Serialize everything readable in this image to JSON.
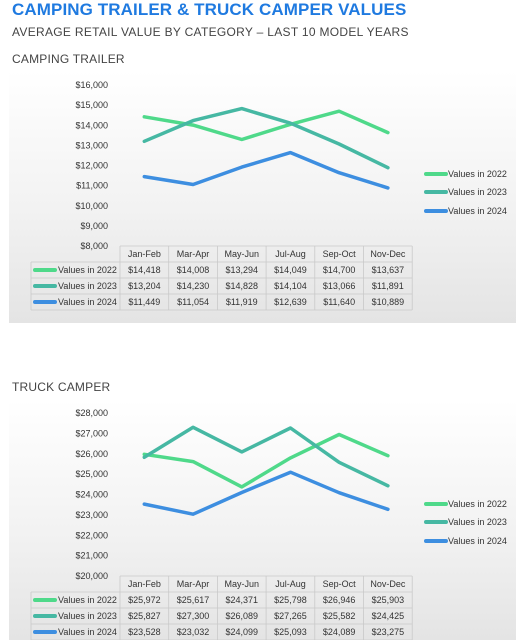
{
  "header": {
    "title": "CAMPING TRAILER & TRUCK CAMPER VALUES",
    "subtitle": "AVERAGE RETAIL VALUE BY CATEGORY – LAST 10 MODEL YEARS"
  },
  "colors": {
    "Values in 2022": "#4fd98a",
    "Values in 2023": "#46b8a3",
    "Values in 2024": "#3d8ee0",
    "title": "#1f7ae0"
  },
  "chart_data": [
    {
      "type": "line",
      "title": "CAMPING TRAILER",
      "categories": [
        "Jan-Feb",
        "Mar-Apr",
        "May-Jun",
        "Jul-Aug",
        "Sep-Oct",
        "Nov-Dec"
      ],
      "ylim": [
        8000,
        16000
      ],
      "yticks": [
        "$8,000",
        "$9,000",
        "$10,000",
        "$11,000",
        "$12,000",
        "$13,000",
        "$14,000",
        "$15,000",
        "$16,000"
      ],
      "legend": "right",
      "series": [
        {
          "name": "Values in 2022",
          "values": [
            14418,
            14008,
            13294,
            14049,
            14700,
            13637
          ],
          "labels": [
            "$14,418",
            "$14,008",
            "$13,294",
            "$14,049",
            "$14,700",
            "$13,637"
          ]
        },
        {
          "name": "Values in 2023",
          "values": [
            13204,
            14230,
            14828,
            14104,
            13066,
            11891
          ],
          "labels": [
            "$13,204",
            "$14,230",
            "$14,828",
            "$14,104",
            "$13,066",
            "$11,891"
          ]
        },
        {
          "name": "Values in 2024",
          "values": [
            11449,
            11054,
            11919,
            12639,
            11640,
            10889
          ],
          "labels": [
            "$11,449",
            "$11,054",
            "$11,919",
            "$12,639",
            "$11,640",
            "$10,889"
          ]
        }
      ]
    },
    {
      "type": "line",
      "title": "TRUCK CAMPER",
      "categories": [
        "Jan-Feb",
        "Mar-Apr",
        "May-Jun",
        "Jul-Aug",
        "Sep-Oct",
        "Nov-Dec"
      ],
      "ylim": [
        20000,
        28000
      ],
      "yticks": [
        "$20,000",
        "$21,000",
        "$22,000",
        "$23,000",
        "$24,000",
        "$25,000",
        "$26,000",
        "$27,000",
        "$28,000"
      ],
      "legend": "right",
      "series": [
        {
          "name": "Values in 2022",
          "values": [
            25972,
            25617,
            24371,
            25798,
            26946,
            25903
          ],
          "labels": [
            "$25,972",
            "$25,617",
            "$24,371",
            "$25,798",
            "$26,946",
            "$25,903"
          ]
        },
        {
          "name": "Values in 2023",
          "values": [
            25827,
            27300,
            26089,
            27265,
            25582,
            24425
          ],
          "labels": [
            "$25,827",
            "$27,300",
            "$26,089",
            "$27,265",
            "$25,582",
            "$24,425"
          ]
        },
        {
          "name": "Values in 2024",
          "values": [
            23528,
            23032,
            24099,
            25093,
            24089,
            23275
          ],
          "labels": [
            "$23,528",
            "$23,032",
            "$24,099",
            "$25,093",
            "$24,089",
            "$23,275"
          ]
        }
      ]
    }
  ]
}
